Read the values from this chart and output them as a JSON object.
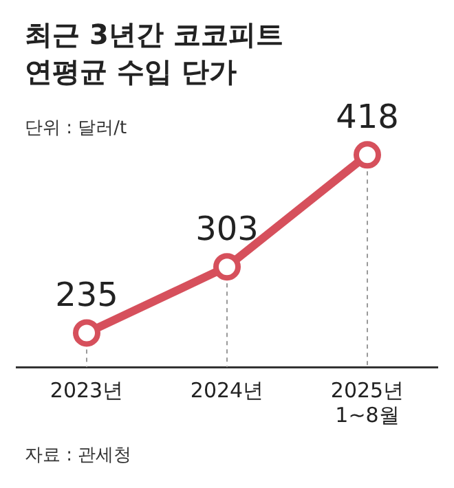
{
  "chart_data": {
    "type": "line",
    "title": "최근 3년간 코코피트 연평균 수입 단가",
    "subtitle": "단위 : 달러/t",
    "annotations": [
      "자료 : 관세청"
    ],
    "categories": [
      "2023년",
      "2024년",
      "2025년 1~8월"
    ],
    "series": [
      {
        "color": "#d6505c",
        "values": [
          235,
          303,
          418
        ]
      }
    ],
    "data_labels": true,
    "marker": "circle",
    "line_style": "solid",
    "grid": "x",
    "legend": false
  }
}
